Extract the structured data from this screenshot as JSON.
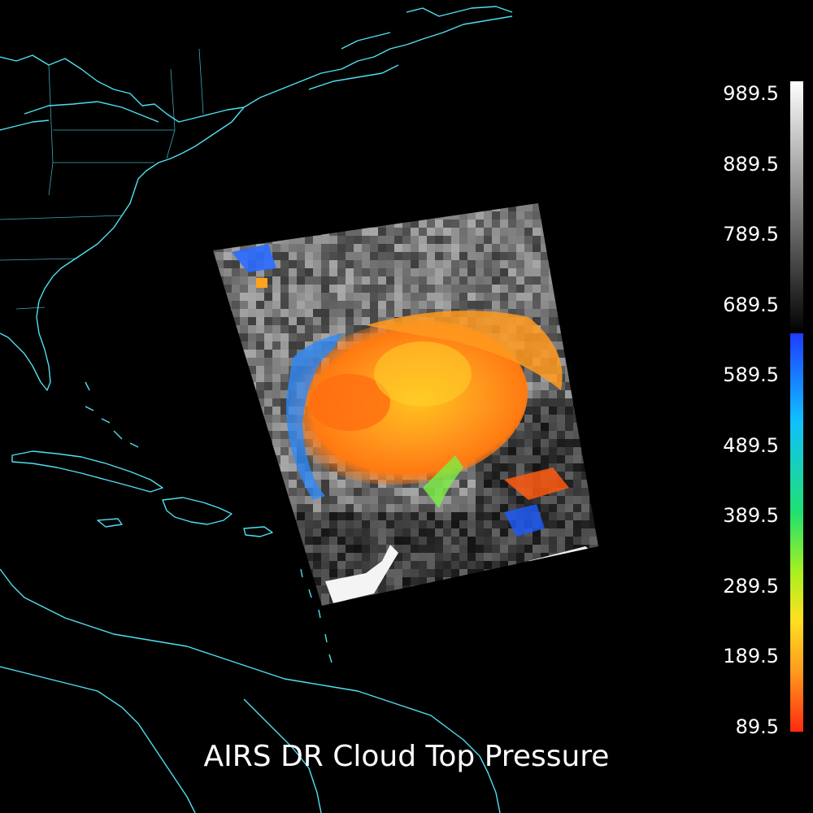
{
  "title": "AIRS DR Cloud Top Pressure",
  "colorbar": {
    "ticks": [
      "989.5",
      "889.5",
      "789.5",
      "689.5",
      "589.5",
      "489.5",
      "389.5",
      "289.5",
      "189.5",
      "89.5"
    ],
    "min": 89.5,
    "max": 989.5,
    "gray_range": [
      650,
      989.5
    ],
    "color_range": [
      89.5,
      650
    ]
  },
  "colors": {
    "background": "#000000",
    "coastline": "#4fe0f0",
    "cloud_core": "#ff8a1e",
    "cloud_high": "#ffd21e",
    "cloud_low": "#2a7bff"
  },
  "icons": {
    "map": "coastline-map"
  }
}
